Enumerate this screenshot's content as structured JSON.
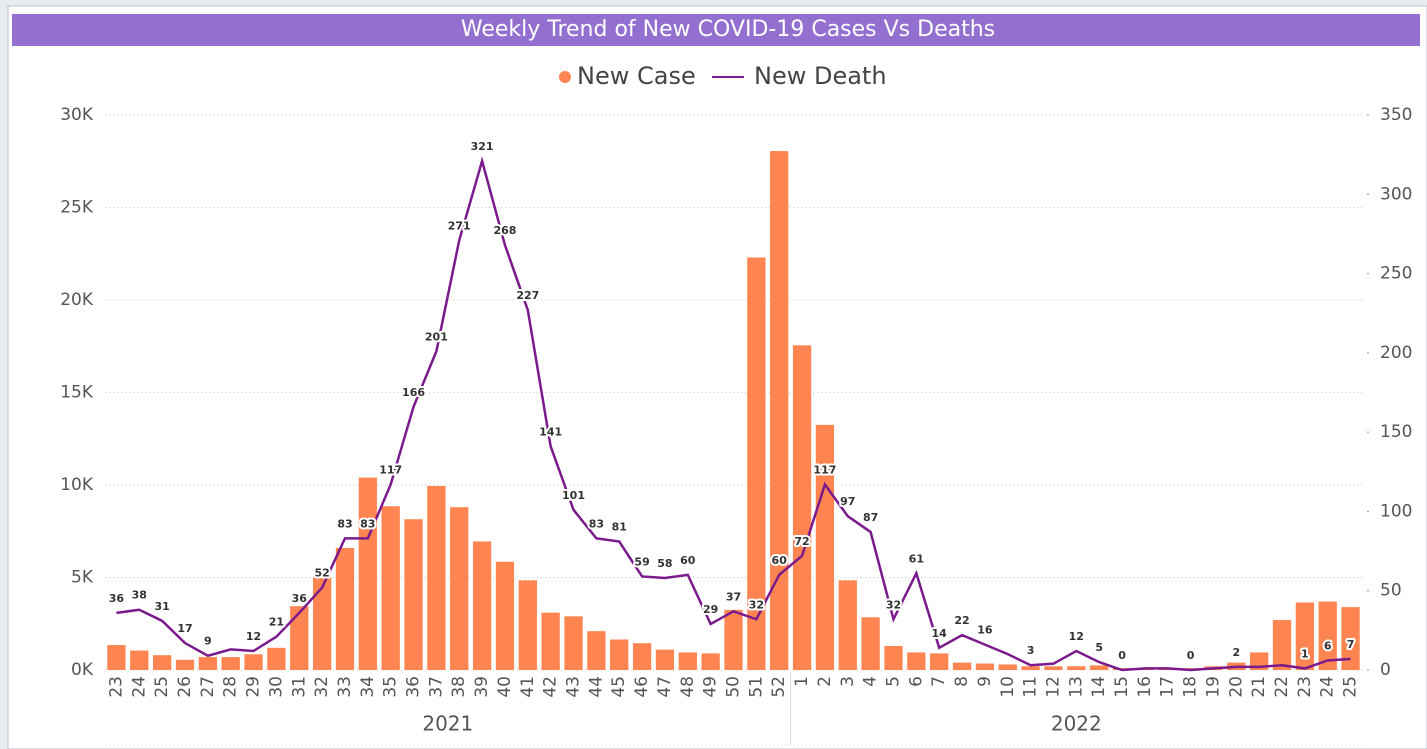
{
  "chart_data": {
    "type": "bar-line",
    "title": "Weekly Trend of New COVID-19 Cases Vs Deaths",
    "categories": [
      "23",
      "24",
      "25",
      "26",
      "27",
      "28",
      "29",
      "30",
      "31",
      "32",
      "33",
      "34",
      "35",
      "36",
      "37",
      "38",
      "39",
      "40",
      "41",
      "42",
      "43",
      "44",
      "45",
      "46",
      "47",
      "48",
      "49",
      "50",
      "51",
      "52",
      "1",
      "2",
      "3",
      "4",
      "5",
      "6",
      "7",
      "8",
      "9",
      "10",
      "11",
      "12",
      "13",
      "14",
      "15",
      "16",
      "17",
      "18",
      "19",
      "20",
      "21",
      "22",
      "23",
      "24",
      "25"
    ],
    "group_labels": [
      "2021",
      "2022"
    ],
    "series": [
      {
        "name": "New Case",
        "color": "#fe8552",
        "axis": "y",
        "values": [
          1350,
          1050,
          800,
          550,
          700,
          700,
          850,
          1200,
          3450,
          5000,
          6600,
          10400,
          8850,
          8150,
          9950,
          8800,
          6950,
          5850,
          4850,
          3100,
          2900,
          2100,
          1650,
          1450,
          1100,
          950,
          900,
          3250,
          22300,
          28050,
          17550,
          13250,
          4850,
          2850,
          1300,
          950,
          900,
          400,
          350,
          300,
          200,
          200,
          200,
          250,
          100,
          100,
          50,
          100,
          200,
          400,
          950,
          2700,
          3650,
          3700,
          3400
        ]
      },
      {
        "name": "New Death",
        "color": "#7a1a8c",
        "axis": "y2",
        "values": [
          36,
          38,
          31,
          17,
          9,
          13,
          12,
          21,
          36,
          52,
          83,
          83,
          117,
          166,
          201,
          271,
          321,
          268,
          227,
          141,
          101,
          83,
          81,
          59,
          58,
          60,
          29,
          37,
          32,
          60,
          72,
          117,
          97,
          87,
          32,
          61,
          14,
          22,
          16,
          10,
          3,
          4,
          12,
          5,
          0,
          1,
          1,
          0,
          1,
          2,
          2,
          3,
          1,
          6,
          7
        ],
        "value_labels": [
          "36",
          "38",
          "31",
          "17",
          "9",
          null,
          "12",
          "21",
          "36",
          "52",
          "83",
          "83",
          "117",
          "166",
          "201",
          "271",
          "321",
          "268",
          "227",
          "141",
          "101",
          "83",
          "81",
          "59",
          "58",
          "60",
          "29",
          "37",
          "32",
          "60",
          "72",
          "117",
          "97",
          "87",
          "32",
          "61",
          "14",
          "22",
          "16",
          null,
          "3",
          null,
          "12",
          "5",
          "0",
          null,
          null,
          "0",
          null,
          "2",
          null,
          null,
          "1",
          "6",
          "7"
        ]
      }
    ],
    "ylim": [
      0,
      30000
    ],
    "yticks": [
      {
        "value": 0,
        "label": "0K"
      },
      {
        "value": 5000,
        "label": "5K"
      },
      {
        "value": 10000,
        "label": "10K"
      },
      {
        "value": 15000,
        "label": "15K"
      },
      {
        "value": 20000,
        "label": "20K"
      },
      {
        "value": 25000,
        "label": "25K"
      },
      {
        "value": 30000,
        "label": "30K"
      }
    ],
    "y2lim": [
      0,
      350
    ],
    "y2ticks": [
      0,
      50,
      100,
      150,
      200,
      250,
      300,
      350
    ],
    "grid": true,
    "legend": "top"
  }
}
